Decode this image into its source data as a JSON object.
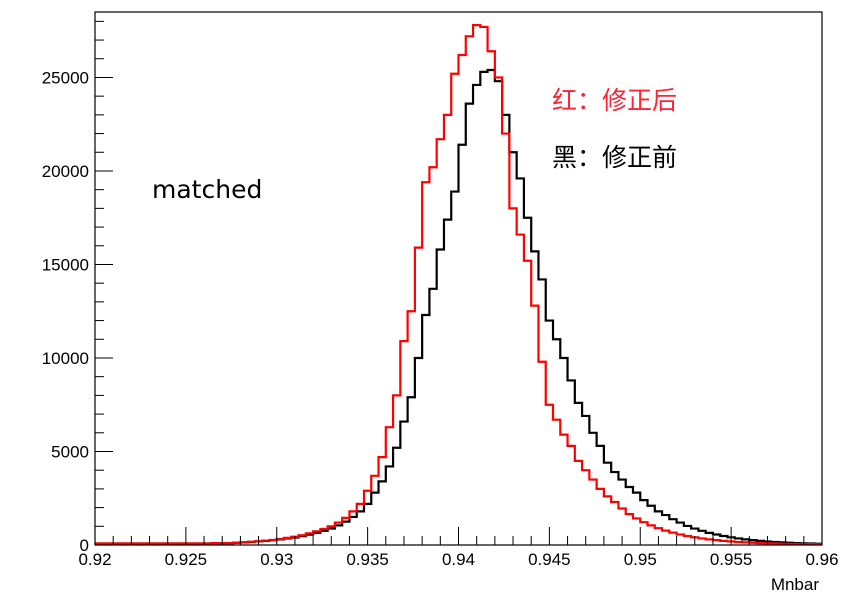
{
  "chart_data": {
    "type": "line",
    "style": "step-histogram",
    "title": "",
    "xlabel": "Mnbar",
    "ylabel": "",
    "xlim": [
      0.92,
      0.96
    ],
    "ylim": [
      0,
      28500
    ],
    "grid": false,
    "x_ticks": [
      0.92,
      0.925,
      0.93,
      0.935,
      0.94,
      0.945,
      0.95,
      0.955,
      0.96
    ],
    "x_tick_labels": [
      "0.92",
      "0.925",
      "0.93",
      "0.935",
      "0.94",
      "0.945",
      "0.95",
      "0.955",
      "0.96"
    ],
    "y_ticks": [
      0,
      5000,
      10000,
      15000,
      20000,
      25000
    ],
    "y_tick_labels": [
      "0",
      "5000",
      "10000",
      "15000",
      "20000",
      "25000"
    ],
    "bin_edges_start": 0.92,
    "bin_width": 0.0004,
    "series": [
      {
        "color": "#ff0000",
        "values": [
          80,
          80,
          80,
          80,
          80,
          80,
          80,
          80,
          80,
          80,
          80,
          80,
          80,
          80,
          80,
          80,
          100,
          100,
          100,
          130,
          150,
          170,
          200,
          230,
          270,
          320,
          380,
          440,
          520,
          620,
          730,
          860,
          1000,
          1200,
          1450,
          1800,
          2200,
          2900,
          3700,
          4700,
          6300,
          8000,
          10900,
          12500,
          15900,
          19400,
          20200,
          21700,
          23000,
          25200,
          26200,
          27200,
          27800,
          27700,
          26400,
          25000,
          22000,
          18000,
          16600,
          15200,
          12800,
          9800,
          7500,
          6700,
          5900,
          5300,
          4500,
          4000,
          3500,
          3000,
          2600,
          2300,
          1950,
          1650,
          1420,
          1220,
          1050,
          900,
          770,
          660,
          560,
          480,
          410,
          350,
          300,
          260,
          220,
          190,
          160,
          140,
          120,
          100,
          90,
          80,
          70,
          60,
          55,
          50,
          45,
          40
        ]
      },
      {
        "color": "#000000",
        "values": [
          80,
          80,
          80,
          80,
          80,
          80,
          80,
          80,
          80,
          80,
          80,
          80,
          80,
          80,
          80,
          80,
          100,
          100,
          100,
          120,
          140,
          160,
          190,
          220,
          260,
          300,
          350,
          400,
          470,
          550,
          650,
          760,
          880,
          1050,
          1250,
          1500,
          1800,
          2200,
          2800,
          3400,
          4200,
          5200,
          6600,
          7900,
          10000,
          12300,
          13700,
          15800,
          17400,
          18900,
          21400,
          23600,
          24600,
          25300,
          25400,
          24800,
          23000,
          21000,
          19600,
          17500,
          15700,
          14200,
          12000,
          11000,
          10000,
          8800,
          7600,
          6900,
          6000,
          5300,
          4400,
          3900,
          3500,
          3100,
          2800,
          2400,
          2100,
          1800,
          1600,
          1380,
          1200,
          1020,
          880,
          760,
          650,
          560,
          480,
          410,
          350,
          300,
          260,
          220,
          190,
          160,
          140,
          120,
          100,
          90,
          80,
          70
        ]
      }
    ],
    "annotations": [
      {
        "text": "matched",
        "color": "#000000"
      },
      {
        "text": "红：修正后",
        "color": "#ff2233"
      },
      {
        "text": "黑：修正前",
        "color": "#000000"
      }
    ]
  }
}
